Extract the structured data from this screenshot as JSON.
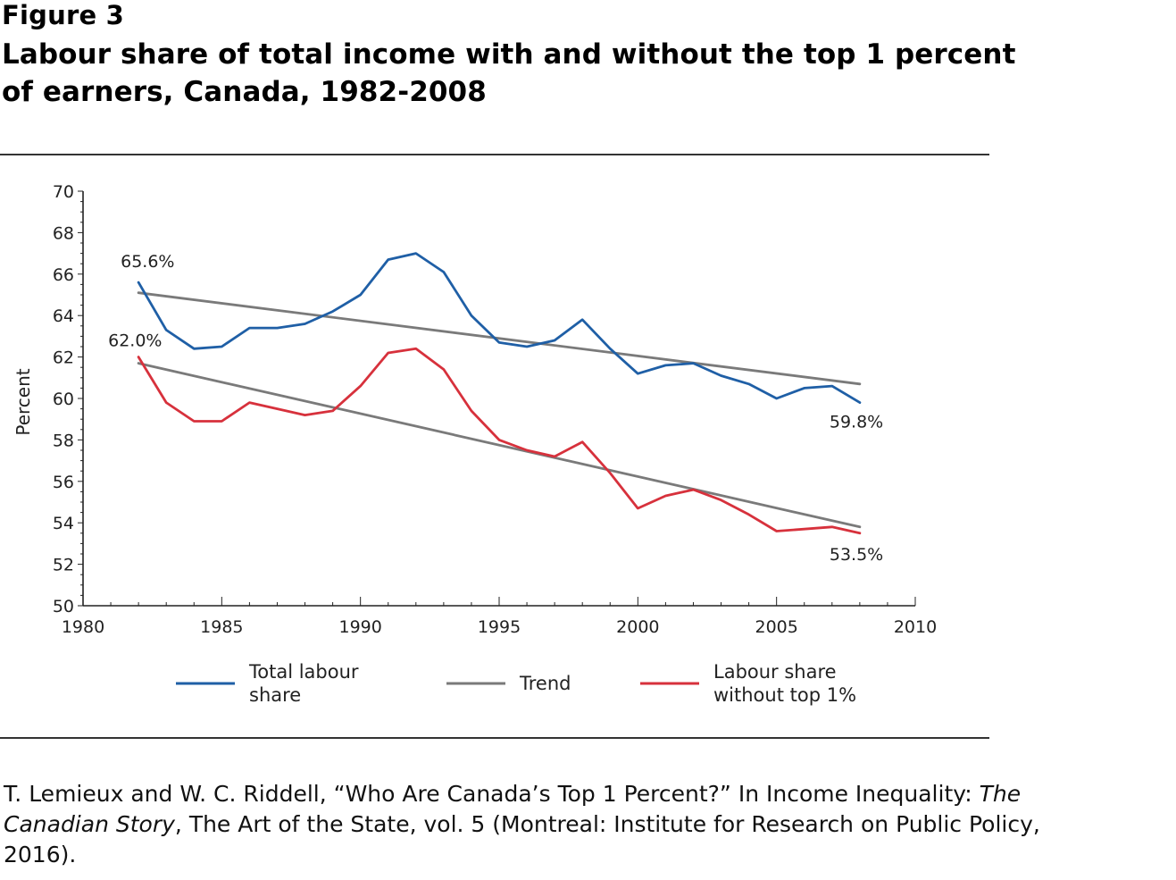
{
  "figure": {
    "label": "Figure 3",
    "title": "Labour share of total income with and without the top 1 percent of earners, Canada, 1982-2008"
  },
  "source": {
    "part1": "T. Lemieux and W. C. Riddell, “Who Are Canada’s Top 1 Percent?” In Income Inequality: ",
    "italic": "The Canadian Story",
    "part2": ", The Art of the State, vol. 5 (Montreal: Institute for Research on Public Policy, 2016)."
  },
  "chart_data": {
    "type": "line",
    "title": "",
    "xlabel": "",
    "ylabel": "Percent",
    "xlim": [
      1980,
      2010
    ],
    "ylim": [
      50,
      70
    ],
    "x_ticks": [
      1980,
      1985,
      1990,
      1995,
      2000,
      2005,
      2010
    ],
    "y_ticks": [
      50,
      52,
      54,
      56,
      58,
      60,
      62,
      64,
      66,
      68,
      70
    ],
    "grid": false,
    "legend_position": "bottom",
    "series": [
      {
        "name": "Total labour share",
        "color": "#1f5fa6",
        "x": [
          1982,
          1983,
          1984,
          1985,
          1986,
          1987,
          1988,
          1989,
          1990,
          1991,
          1992,
          1993,
          1994,
          1995,
          1996,
          1997,
          1998,
          1999,
          2000,
          2001,
          2002,
          2003,
          2004,
          2005,
          2006,
          2007,
          2008
        ],
        "y": [
          65.6,
          63.3,
          62.4,
          62.5,
          63.4,
          63.4,
          63.6,
          64.2,
          65.0,
          66.7,
          67.0,
          66.1,
          64.0,
          62.7,
          62.5,
          62.8,
          63.8,
          62.4,
          61.2,
          61.6,
          61.7,
          61.1,
          60.7,
          60.0,
          60.5,
          60.6,
          59.8
        ]
      },
      {
        "name": "Labour share without top 1%",
        "color": "#d7313c",
        "x": [
          1982,
          1983,
          1984,
          1985,
          1986,
          1987,
          1988,
          1989,
          1990,
          1991,
          1992,
          1993,
          1994,
          1995,
          1996,
          1997,
          1998,
          1999,
          2000,
          2001,
          2002,
          2003,
          2004,
          2005,
          2006,
          2007,
          2008
        ],
        "y": [
          62.0,
          59.8,
          58.9,
          58.9,
          59.8,
          59.5,
          59.2,
          59.4,
          60.6,
          62.2,
          62.4,
          61.4,
          59.4,
          58.0,
          57.5,
          57.2,
          57.9,
          56.4,
          54.7,
          55.3,
          55.6,
          55.1,
          54.4,
          53.6,
          53.7,
          53.8,
          53.5
        ]
      },
      {
        "name": "Trend",
        "color": "#7a7a7a",
        "x": [
          1982,
          2008
        ],
        "y": [
          65.1,
          60.7
        ]
      },
      {
        "name": "Trend",
        "color": "#7a7a7a",
        "x": [
          1982,
          2008
        ],
        "y": [
          61.7,
          53.8
        ]
      }
    ],
    "legend": [
      {
        "label": "Total labour share",
        "color": "#1f5fa6"
      },
      {
        "label": "Trend",
        "color": "#7a7a7a"
      },
      {
        "label": "Labour share without top 1%",
        "color": "#d7313c"
      }
    ],
    "annotations": [
      {
        "text": "65.6%",
        "x": 1982,
        "y": 65.6
      },
      {
        "text": "62.0%",
        "x": 1982,
        "y": 62.0
      },
      {
        "text": "59.8%",
        "x": 2008,
        "y": 59.8
      },
      {
        "text": "53.5%",
        "x": 2008,
        "y": 53.5
      }
    ]
  }
}
